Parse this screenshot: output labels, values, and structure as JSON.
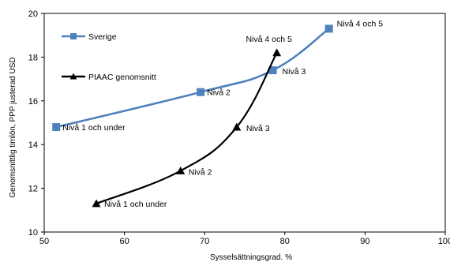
{
  "chart_data": {
    "type": "line",
    "xlabel": "Sysselsättningsgrad. %",
    "ylabel": "Genomsnittlig timlön, PPP justerad USD",
    "xlim": [
      50,
      100
    ],
    "ylim": [
      10,
      20
    ],
    "x_ticks": [
      50,
      60,
      70,
      80,
      90,
      100
    ],
    "y_ticks": [
      10,
      12,
      14,
      16,
      18,
      20
    ],
    "grid": false,
    "legend": "top-left",
    "series": [
      {
        "name": "Sverige",
        "color": "#4f81bd",
        "marker": "square",
        "points": [
          {
            "x": 51.5,
            "y": 14.8,
            "label": "Nivå 1 och under"
          },
          {
            "x": 69.5,
            "y": 16.4,
            "label": "Nivå 2"
          },
          {
            "x": 78.5,
            "y": 17.4,
            "label": "Nivå 3"
          },
          {
            "x": 85.5,
            "y": 19.3,
            "label": "Nivå 4 och 5"
          }
        ]
      },
      {
        "name": "PIAAC genomsnitt",
        "color": "#000000",
        "marker": "triangle",
        "points": [
          {
            "x": 56.5,
            "y": 11.3,
            "label": "Nivå 1 och under"
          },
          {
            "x": 67.0,
            "y": 12.8,
            "label": "Nivå 2"
          },
          {
            "x": 74.0,
            "y": 14.8,
            "label": "Nivå 3"
          },
          {
            "x": 79.0,
            "y": 18.2,
            "label": "Nivå 4 och 5"
          }
        ]
      }
    ]
  }
}
